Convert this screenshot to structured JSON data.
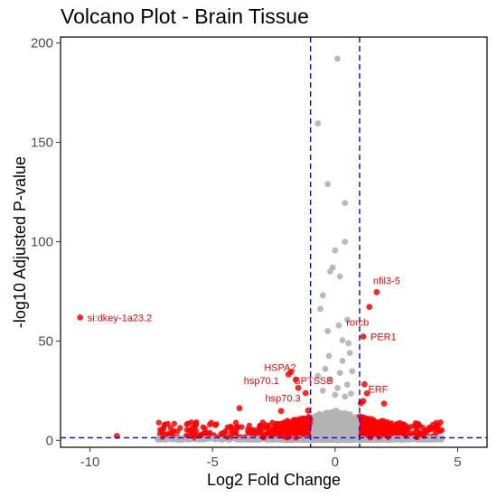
{
  "chart_data": {
    "type": "scatter",
    "title": "Volcano Plot - Brain Tissue",
    "xlabel": "Log2 Fold Change",
    "ylabel": "-log10 Adjusted P-value",
    "xlim": [
      -11.2,
      6.2
    ],
    "ylim": [
      -3.5,
      203
    ],
    "x_ticks": [
      -10,
      -5,
      0,
      5
    ],
    "x_tick_labels": [
      "-10",
      "-5",
      "0",
      "5"
    ],
    "y_ticks": [
      0,
      50,
      100,
      150,
      200
    ],
    "y_tick_labels": [
      "0",
      "50",
      "100",
      "150",
      "200"
    ],
    "grid": false,
    "thresholds": {
      "log2fc": [
        -1,
        1
      ],
      "neg_log10_padj": 1.3,
      "line_color": "#0000ff"
    },
    "colors": {
      "significant": "#ff0000",
      "not_significant": "#b3b3b3",
      "label": "#ff0000"
    },
    "series": [
      {
        "points": [
          [
            -10.4,
            61.8
          ],
          [
            -1.8,
            34.5
          ],
          [
            -1.9,
            33.2
          ],
          [
            -1.6,
            30.5
          ],
          [
            -1.5,
            26.4
          ],
          [
            -1.2,
            23.8
          ],
          [
            1.7,
            74.6
          ],
          [
            1.4,
            67.2
          ],
          [
            1.15,
            52.2
          ],
          [
            1.2,
            28.2
          ],
          [
            1.3,
            23.6
          ],
          [
            1.15,
            19.8
          ],
          [
            1.05,
            18.7
          ],
          [
            -3.9,
            16.2
          ],
          [
            -2.2,
            14.8
          ],
          [
            -8.9,
            2.2
          ],
          [
            -4.0,
            6.8
          ],
          [
            2.6,
            4.5
          ],
          [
            4.3,
            9.0
          ],
          [
            4.0,
            7.8
          ],
          [
            3.9,
            6.1
          ],
          [
            3.4,
            8.2
          ],
          [
            2.0,
            18.5
          ],
          [
            -1.1,
            15.0
          ]
        ]
      },
      {
        "points": [
          [
            0.1,
            192.1
          ],
          [
            -0.7,
            159.5
          ],
          [
            -0.3,
            129.0
          ],
          [
            0.4,
            119.5
          ],
          [
            0,
            95.6
          ],
          [
            -0.1,
            87.0
          ],
          [
            -0.2,
            85.0
          ],
          [
            0.4,
            100.0
          ],
          [
            0.2,
            82.5
          ],
          [
            -0.5,
            73.0
          ],
          [
            0.5,
            60.7
          ],
          [
            0.15,
            57.8
          ],
          [
            -0.3,
            55.0
          ],
          [
            0.3,
            50.4
          ],
          [
            0.55,
            48.9
          ],
          [
            -0.6,
            66.2
          ],
          [
            0.6,
            44.0
          ],
          [
            0.3,
            40.0
          ],
          [
            -0.4,
            36.0
          ],
          [
            0.2,
            34.0
          ],
          [
            -0.2,
            30.7
          ],
          [
            0.5,
            28.0
          ],
          [
            -0.5,
            25.0
          ],
          [
            0.4,
            22.0
          ],
          [
            0.1,
            26.4
          ],
          [
            0.7,
            34.8
          ],
          [
            -0.7,
            32.5
          ],
          [
            0,
            22.9
          ],
          [
            -0.25,
            42.5
          ],
          [
            0.65,
            23.5
          ]
        ]
      }
    ],
    "labels": [
      {
        "text": "si:dkey-1a23.2",
        "x": -10.4,
        "y": 61.8
      },
      {
        "text": "nfil3-5",
        "x": 1.7,
        "y": 74.6
      },
      {
        "text": "rorcb",
        "x": 0.9,
        "y": 59.4
      },
      {
        "text": "PER1",
        "x": 1.15,
        "y": 52.2
      },
      {
        "text": "HSPA2",
        "x": -1.8,
        "y": 34.5
      },
      {
        "text": "hsp70.1",
        "x": -1.9,
        "y": 30.5
      },
      {
        "text": "SPTSSB",
        "x": -1.2,
        "y": 30.5
      },
      {
        "text": "hsp70.3",
        "x": -1.5,
        "y": 26.4
      },
      {
        "text": "ERF",
        "x": 1.2,
        "y": 23.6
      }
    ]
  }
}
